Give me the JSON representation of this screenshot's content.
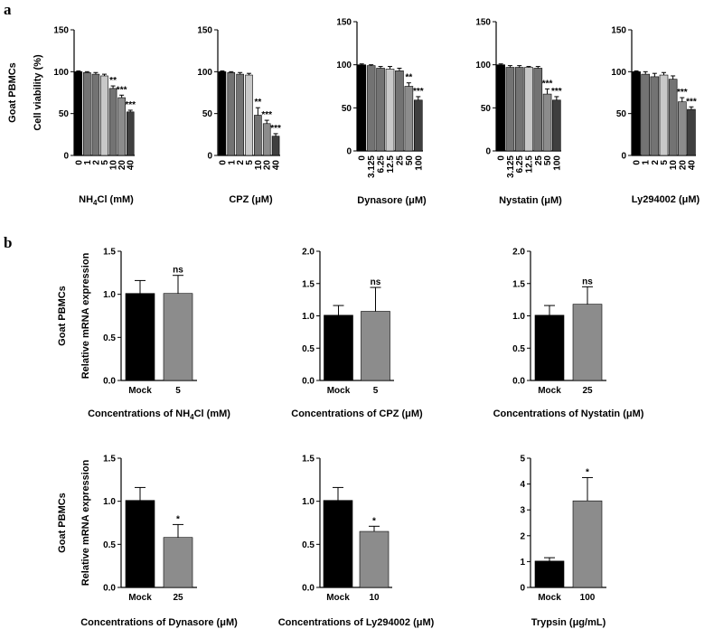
{
  "figure": {
    "panel_a_letter": "a",
    "panel_b_letter": "b",
    "row_label": "Goat PBMCs"
  },
  "colors": {
    "black": "#000000",
    "dark": "#3f3f3f",
    "mid": "#737373",
    "light": "#c8c8c8",
    "gray": "#8c8c8c"
  },
  "chart_data": [
    {
      "id": "a1",
      "panel": "a",
      "type": "bar",
      "title": "",
      "xlabel": "NH4Cl (mM)",
      "xlabel_base": "NH",
      "xlabel_sub": "4",
      "xlabel_rest": "Cl (mM)",
      "ylabel": "Cell viability (%)",
      "row_label": "Goat PBMCs",
      "ylim": [
        0,
        150
      ],
      "yticks": [
        "0",
        "50",
        "100",
        "150"
      ],
      "categories": [
        "0",
        "1",
        "2",
        "5",
        "10",
        "20",
        "40"
      ],
      "values": [
        100,
        99,
        97,
        95,
        80,
        69,
        52
      ],
      "errors": [
        1,
        1,
        2,
        2,
        3,
        3,
        2
      ],
      "significance": [
        "",
        "",
        "",
        "",
        "**",
        "***",
        "***"
      ],
      "bar_colors": [
        "#000000",
        "#737373",
        "#737373",
        "#c8c8c8",
        "#737373",
        "#8c8c8c",
        "#3f3f3f"
      ]
    },
    {
      "id": "a2",
      "panel": "a",
      "type": "bar",
      "title": "",
      "xlabel": "CPZ (μM)",
      "ylabel": "",
      "ylim": [
        0,
        150
      ],
      "yticks": [
        "0",
        "50",
        "100",
        "150"
      ],
      "categories": [
        "0",
        "1",
        "2",
        "5",
        "10",
        "20",
        "40"
      ],
      "values": [
        100,
        99,
        97,
        96,
        48,
        38,
        23
      ],
      "errors": [
        1,
        1,
        2,
        2,
        9,
        4,
        3
      ],
      "significance": [
        "",
        "",
        "",
        "",
        "**",
        "***",
        "***"
      ],
      "bar_colors": [
        "#000000",
        "#737373",
        "#737373",
        "#c8c8c8",
        "#737373",
        "#8c8c8c",
        "#3f3f3f"
      ]
    },
    {
      "id": "a3",
      "panel": "a",
      "type": "bar",
      "title": "",
      "xlabel": "Dynasore (μM)",
      "ylabel": "",
      "ylim": [
        0,
        150
      ],
      "yticks": [
        "0",
        "50",
        "100",
        "150"
      ],
      "categories": [
        "0",
        "3.125",
        "6.25",
        "12.5",
        "25",
        "50",
        "100"
      ],
      "values": [
        100,
        99,
        96,
        95,
        93,
        75,
        59
      ],
      "errors": [
        1,
        1,
        2,
        3,
        3,
        4,
        4
      ],
      "significance": [
        "",
        "",
        "",
        "",
        "",
        "**",
        "***"
      ],
      "bar_colors": [
        "#000000",
        "#737373",
        "#737373",
        "#c8c8c8",
        "#737373",
        "#8c8c8c",
        "#3f3f3f"
      ]
    },
    {
      "id": "a4",
      "panel": "a",
      "type": "bar",
      "title": "",
      "xlabel": "Nystatin (μM)",
      "ylabel": "",
      "ylim": [
        0,
        150
      ],
      "yticks": [
        "0",
        "50",
        "100",
        "150"
      ],
      "categories": [
        "0",
        "3.125",
        "6.25",
        "12.5",
        "25",
        "50",
        "100"
      ],
      "values": [
        100,
        97,
        97,
        97,
        96,
        66,
        59
      ],
      "errors": [
        1,
        2,
        2,
        1,
        2,
        6,
        4
      ],
      "significance": [
        "",
        "",
        "",
        "",
        "",
        "***",
        "***"
      ],
      "bar_colors": [
        "#000000",
        "#737373",
        "#737373",
        "#c8c8c8",
        "#737373",
        "#8c8c8c",
        "#3f3f3f"
      ]
    },
    {
      "id": "a5",
      "panel": "a",
      "type": "bar",
      "title": "",
      "xlabel": "Ly294002 (μM)",
      "ylabel": "",
      "ylim": [
        0,
        150
      ],
      "yticks": [
        "0",
        "50",
        "100",
        "150"
      ],
      "categories": [
        "0",
        "1",
        "2",
        "5",
        "10",
        "20",
        "40"
      ],
      "values": [
        100,
        97,
        94,
        96,
        91,
        64,
        55
      ],
      "errors": [
        1,
        3,
        4,
        3,
        4,
        5,
        3
      ],
      "significance": [
        "",
        "",
        "",
        "",
        "",
        "***",
        "***"
      ],
      "bar_colors": [
        "#000000",
        "#737373",
        "#737373",
        "#c8c8c8",
        "#737373",
        "#8c8c8c",
        "#3f3f3f"
      ]
    },
    {
      "id": "b1",
      "panel": "b",
      "type": "bar",
      "title": "",
      "xlabel": "Concentrations of NH4Cl (mM)",
      "xlabel_base": "Concentrations of NH",
      "xlabel_sub": "4",
      "xlabel_rest": "Cl (mM)",
      "ylabel": "Relative mRNA expression",
      "row_label": "Goat PBMCs",
      "ylim": [
        0,
        1.5
      ],
      "yticks": [
        "0.0",
        "0.5",
        "1.0",
        "1.5"
      ],
      "categories": [
        "Mock",
        "5"
      ],
      "values": [
        1.01,
        1.01
      ],
      "errors": [
        0.15,
        0.21
      ],
      "significance": [
        "",
        "ns"
      ],
      "bar_colors": [
        "#000000",
        "#8c8c8c"
      ]
    },
    {
      "id": "b2",
      "panel": "b",
      "type": "bar",
      "title": "",
      "xlabel": "Concentrations of CPZ (μM)",
      "ylabel": "",
      "ylim": [
        0,
        2.0
      ],
      "yticks": [
        "0.0",
        "0.5",
        "1.0",
        "1.5",
        "2.0"
      ],
      "categories": [
        "Mock",
        "5"
      ],
      "values": [
        1.01,
        1.07
      ],
      "errors": [
        0.15,
        0.37
      ],
      "significance": [
        "",
        "ns"
      ],
      "bar_colors": [
        "#000000",
        "#8c8c8c"
      ]
    },
    {
      "id": "b3",
      "panel": "b",
      "type": "bar",
      "title": "",
      "xlabel": "Concentrations of Nystatin (μM)",
      "ylabel": "",
      "ylim": [
        0,
        2.0
      ],
      "yticks": [
        "0.0",
        "0.5",
        "1.0",
        "1.5",
        "2.0"
      ],
      "categories": [
        "Mock",
        "25"
      ],
      "values": [
        1.01,
        1.18
      ],
      "errors": [
        0.15,
        0.27
      ],
      "significance": [
        "",
        "ns"
      ],
      "bar_colors": [
        "#000000",
        "#8c8c8c"
      ]
    },
    {
      "id": "b4",
      "panel": "b",
      "type": "bar",
      "title": "",
      "xlabel": "Concentrations of Dynasore (μM)",
      "ylabel": "Relative mRNA expression",
      "row_label": "Goat PBMCs",
      "ylim": [
        0,
        1.5
      ],
      "yticks": [
        "0.0",
        "0.5",
        "1.0",
        "1.5"
      ],
      "categories": [
        "Mock",
        "25"
      ],
      "values": [
        1.01,
        0.58
      ],
      "errors": [
        0.15,
        0.15
      ],
      "significance": [
        "",
        "*"
      ],
      "bar_colors": [
        "#000000",
        "#8c8c8c"
      ]
    },
    {
      "id": "b5",
      "panel": "b",
      "type": "bar",
      "title": "",
      "xlabel": "Concentrations of Ly294002 (μM)",
      "ylabel": "",
      "ylim": [
        0,
        1.5
      ],
      "yticks": [
        "0.0",
        "0.5",
        "1.0",
        "1.5"
      ],
      "categories": [
        "Mock",
        "10"
      ],
      "values": [
        1.01,
        0.65
      ],
      "errors": [
        0.15,
        0.06
      ],
      "significance": [
        "",
        "*"
      ],
      "bar_colors": [
        "#000000",
        "#8c8c8c"
      ]
    },
    {
      "id": "b6",
      "panel": "b",
      "type": "bar",
      "title": "",
      "xlabel": "Trypsin (μg/mL)",
      "ylabel": "",
      "ylim": [
        0,
        5
      ],
      "yticks": [
        "0",
        "1",
        "2",
        "3",
        "4",
        "5"
      ],
      "categories": [
        "Mock",
        "100"
      ],
      "values": [
        1.02,
        3.35
      ],
      "errors": [
        0.13,
        0.9
      ],
      "significance": [
        "",
        "*"
      ],
      "bar_colors": [
        "#000000",
        "#8c8c8c"
      ]
    }
  ]
}
